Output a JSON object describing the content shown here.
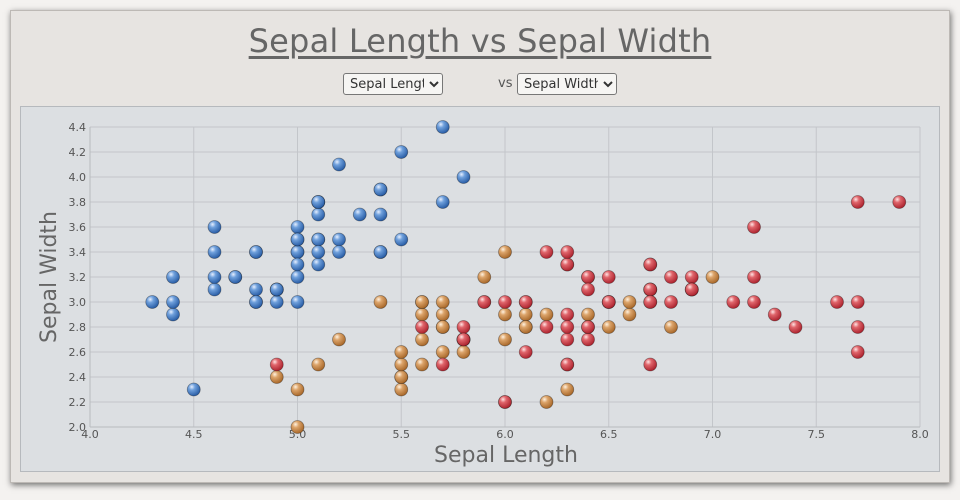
{
  "title": "Sepal Length vs Sepal Width",
  "controls": {
    "x_selected": "Sepal Length",
    "vs_label": "vs",
    "y_selected": "Sepal Width"
  },
  "colors": {
    "setosa": "#3e78c4",
    "versicolor": "#c98a45",
    "virginica": "#d33c44"
  },
  "chart_data": {
    "type": "scatter",
    "title": "Sepal Length vs Sepal Width",
    "xlabel": "Sepal Length",
    "ylabel": "Sepal Width",
    "xlim": [
      4.0,
      8.0
    ],
    "ylim": [
      2.0,
      4.4
    ],
    "x_ticks": [
      "4.0",
      "4.5",
      "5.0",
      "5.5",
      "6.0",
      "6.5",
      "7.0",
      "7.5",
      "8.0"
    ],
    "y_ticks": [
      "2.0",
      "2.2",
      "2.4",
      "2.6",
      "2.8",
      "3.0",
      "3.2",
      "3.4",
      "3.6",
      "3.8",
      "4.0",
      "4.2",
      "4.4"
    ],
    "grid": true,
    "series": [
      {
        "color": "#3e78c4",
        "points": [
          [
            5.1,
            3.5
          ],
          [
            4.9,
            3.0
          ],
          [
            4.7,
            3.2
          ],
          [
            4.6,
            3.1
          ],
          [
            5.0,
            3.6
          ],
          [
            5.4,
            3.9
          ],
          [
            4.6,
            3.4
          ],
          [
            5.0,
            3.4
          ],
          [
            4.4,
            2.9
          ],
          [
            4.9,
            3.1
          ],
          [
            5.4,
            3.7
          ],
          [
            4.8,
            3.4
          ],
          [
            4.8,
            3.0
          ],
          [
            4.3,
            3.0
          ],
          [
            5.8,
            4.0
          ],
          [
            5.7,
            4.4
          ],
          [
            5.4,
            3.9
          ],
          [
            5.1,
            3.5
          ],
          [
            5.7,
            3.8
          ],
          [
            5.1,
            3.8
          ],
          [
            5.4,
            3.4
          ],
          [
            5.1,
            3.7
          ],
          [
            4.6,
            3.6
          ],
          [
            5.1,
            3.3
          ],
          [
            4.8,
            3.4
          ],
          [
            5.0,
            3.0
          ],
          [
            5.0,
            3.4
          ],
          [
            5.2,
            3.5
          ],
          [
            5.2,
            3.4
          ],
          [
            4.7,
            3.2
          ],
          [
            4.8,
            3.1
          ],
          [
            5.4,
            3.4
          ],
          [
            5.2,
            4.1
          ],
          [
            5.5,
            4.2
          ],
          [
            4.9,
            3.1
          ],
          [
            5.0,
            3.2
          ],
          [
            5.5,
            3.5
          ],
          [
            4.9,
            3.1
          ],
          [
            4.4,
            3.0
          ],
          [
            5.1,
            3.4
          ],
          [
            5.0,
            3.5
          ],
          [
            4.5,
            2.3
          ],
          [
            4.4,
            3.2
          ],
          [
            5.0,
            3.5
          ],
          [
            5.1,
            3.8
          ],
          [
            4.8,
            3.0
          ],
          [
            5.1,
            3.8
          ],
          [
            4.6,
            3.2
          ],
          [
            5.3,
            3.7
          ],
          [
            5.0,
            3.3
          ]
        ]
      },
      {
        "color": "#c98a45",
        "points": [
          [
            7.0,
            3.2
          ],
          [
            6.4,
            3.2
          ],
          [
            6.9,
            3.1
          ],
          [
            5.5,
            2.3
          ],
          [
            6.5,
            2.8
          ],
          [
            5.7,
            2.8
          ],
          [
            6.3,
            3.3
          ],
          [
            4.9,
            2.4
          ],
          [
            6.6,
            2.9
          ],
          [
            5.2,
            2.7
          ],
          [
            5.0,
            2.0
          ],
          [
            5.9,
            3.0
          ],
          [
            6.0,
            2.2
          ],
          [
            6.1,
            2.9
          ],
          [
            5.6,
            2.9
          ],
          [
            6.7,
            3.1
          ],
          [
            5.6,
            3.0
          ],
          [
            5.8,
            2.7
          ],
          [
            6.2,
            2.2
          ],
          [
            5.6,
            2.5
          ],
          [
            5.9,
            3.2
          ],
          [
            6.1,
            2.8
          ],
          [
            6.3,
            2.5
          ],
          [
            6.1,
            2.8
          ],
          [
            6.4,
            2.9
          ],
          [
            6.6,
            3.0
          ],
          [
            6.8,
            2.8
          ],
          [
            6.7,
            3.0
          ],
          [
            6.0,
            2.9
          ],
          [
            5.7,
            2.6
          ],
          [
            5.5,
            2.4
          ],
          [
            5.5,
            2.4
          ],
          [
            5.8,
            2.7
          ],
          [
            6.0,
            2.7
          ],
          [
            5.4,
            3.0
          ],
          [
            6.0,
            3.4
          ],
          [
            6.7,
            3.1
          ],
          [
            6.3,
            2.3
          ],
          [
            5.6,
            3.0
          ],
          [
            5.5,
            2.5
          ],
          [
            5.5,
            2.6
          ],
          [
            6.1,
            3.0
          ],
          [
            5.8,
            2.6
          ],
          [
            5.0,
            2.3
          ],
          [
            5.6,
            2.7
          ],
          [
            5.7,
            3.0
          ],
          [
            5.7,
            2.9
          ],
          [
            6.2,
            2.9
          ],
          [
            5.1,
            2.5
          ],
          [
            5.7,
            2.8
          ]
        ]
      },
      {
        "color": "#d33c44",
        "points": [
          [
            6.3,
            3.3
          ],
          [
            5.8,
            2.7
          ],
          [
            7.1,
            3.0
          ],
          [
            6.3,
            2.9
          ],
          [
            6.5,
            3.0
          ],
          [
            7.6,
            3.0
          ],
          [
            4.9,
            2.5
          ],
          [
            7.3,
            2.9
          ],
          [
            6.7,
            2.5
          ],
          [
            7.2,
            3.6
          ],
          [
            6.5,
            3.2
          ],
          [
            6.4,
            2.7
          ],
          [
            6.8,
            3.0
          ],
          [
            5.7,
            2.5
          ],
          [
            5.8,
            2.8
          ],
          [
            6.4,
            3.2
          ],
          [
            6.5,
            3.0
          ],
          [
            7.7,
            3.8
          ],
          [
            7.7,
            2.6
          ],
          [
            6.0,
            2.2
          ],
          [
            6.9,
            3.2
          ],
          [
            5.6,
            2.8
          ],
          [
            7.7,
            2.8
          ],
          [
            6.3,
            2.7
          ],
          [
            6.7,
            3.3
          ],
          [
            7.2,
            3.2
          ],
          [
            6.2,
            2.8
          ],
          [
            6.1,
            3.0
          ],
          [
            6.4,
            2.8
          ],
          [
            7.2,
            3.0
          ],
          [
            7.4,
            2.8
          ],
          [
            7.9,
            3.8
          ],
          [
            6.4,
            2.8
          ],
          [
            6.3,
            2.8
          ],
          [
            6.1,
            2.6
          ],
          [
            7.7,
            3.0
          ],
          [
            6.3,
            3.4
          ],
          [
            6.4,
            3.1
          ],
          [
            6.0,
            3.0
          ],
          [
            6.9,
            3.1
          ],
          [
            6.7,
            3.1
          ],
          [
            6.9,
            3.1
          ],
          [
            5.8,
            2.7
          ],
          [
            6.8,
            3.2
          ],
          [
            6.7,
            3.3
          ],
          [
            6.7,
            3.0
          ],
          [
            6.3,
            2.5
          ],
          [
            6.5,
            3.0
          ],
          [
            6.2,
            3.4
          ],
          [
            5.9,
            3.0
          ]
        ]
      }
    ]
  }
}
